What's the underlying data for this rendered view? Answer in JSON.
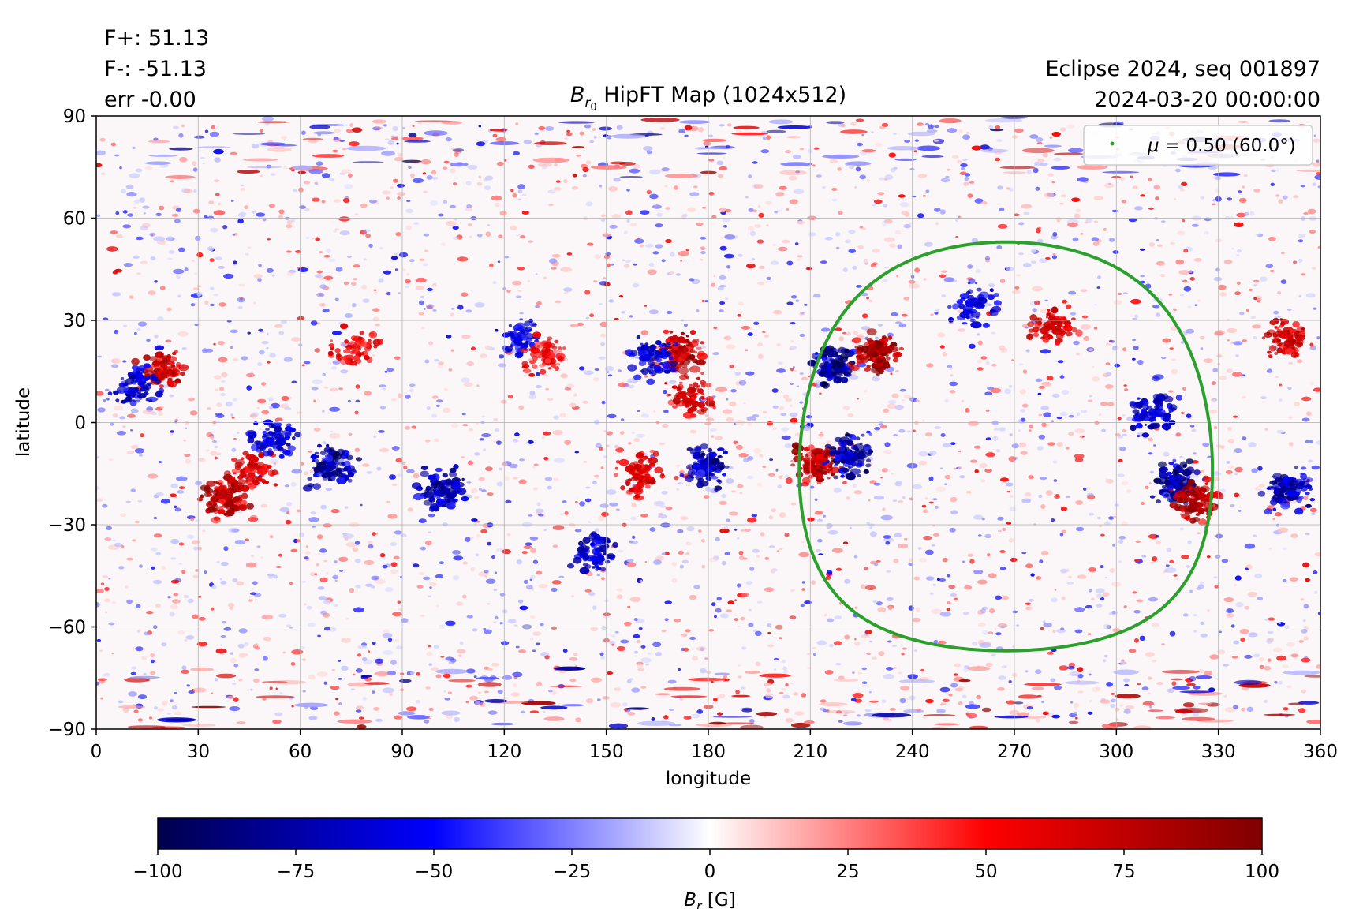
{
  "header": {
    "flux_pos": "F+: 51.13",
    "flux_neg": "F-: -51.13",
    "flux_err": "err -0.00",
    "title_symbol": "B",
    "title_subscript": "r",
    "title_subsubscript": "0",
    "title_rest": " HipFT Map (1024x512)",
    "event": "Eclipse 2024, seq 001897",
    "datetime": "2024-03-20 00:00:00"
  },
  "legend": {
    "mu_symbol": "μ",
    "text": " = 0.50 (60.0°)",
    "color": "#2ca02c"
  },
  "chart_data": {
    "type": "heatmap",
    "xlabel": "longitude",
    "ylabel": "latitude",
    "xlim": [
      0,
      360
    ],
    "ylim": [
      -90,
      90
    ],
    "xticks": [
      0,
      30,
      60,
      90,
      120,
      150,
      180,
      210,
      240,
      270,
      300,
      330,
      360
    ],
    "yticks": [
      90,
      60,
      30,
      0,
      -30,
      -60,
      -90
    ],
    "ytick_labels": [
      "90",
      "60",
      "30",
      "0",
      "−30",
      "−60",
      "−90"
    ],
    "grid": true,
    "colormap": "seismic",
    "colorbar": {
      "range": [
        -100,
        100
      ],
      "ticks": [
        -100,
        -75,
        -50,
        -25,
        0,
        25,
        50,
        75,
        100
      ],
      "tick_labels": [
        "−100",
        "−75",
        "−50",
        "−25",
        "0",
        "25",
        "50",
        "75",
        "100"
      ],
      "label_symbol": "B",
      "label_subscript": "r",
      "label_unit": " [G]",
      "stops": [
        "#00004c",
        "#0000ff",
        "#ffffff",
        "#ff0000",
        "#7f0000"
      ]
    },
    "active_regions": [
      {
        "lon": 217,
        "lat": 17,
        "polarity": "negative",
        "strength": 1.0
      },
      {
        "lon": 229,
        "lat": 20,
        "polarity": "positive",
        "strength": 1.0
      },
      {
        "lon": 212,
        "lat": -12,
        "polarity": "positive",
        "strength": 0.9
      },
      {
        "lon": 221,
        "lat": -10,
        "polarity": "negative",
        "strength": 0.9
      },
      {
        "lon": 172,
        "lat": 21,
        "polarity": "positive",
        "strength": 0.9
      },
      {
        "lon": 164,
        "lat": 19,
        "polarity": "negative",
        "strength": 0.6
      },
      {
        "lon": 175,
        "lat": 8,
        "polarity": "positive",
        "strength": 0.6
      },
      {
        "lon": 38,
        "lat": -22,
        "polarity": "positive",
        "strength": 0.9
      },
      {
        "lon": 46,
        "lat": -14,
        "polarity": "positive",
        "strength": 0.6
      },
      {
        "lon": 70,
        "lat": -13,
        "polarity": "negative",
        "strength": 0.9
      },
      {
        "lon": 52,
        "lat": -5,
        "polarity": "negative",
        "strength": 0.6
      },
      {
        "lon": 20,
        "lat": 15,
        "polarity": "positive",
        "strength": 0.8
      },
      {
        "lon": 12,
        "lat": 10,
        "polarity": "negative",
        "strength": 0.6
      },
      {
        "lon": 102,
        "lat": -20,
        "polarity": "negative",
        "strength": 0.8
      },
      {
        "lon": 180,
        "lat": -13,
        "polarity": "negative",
        "strength": 0.8
      },
      {
        "lon": 160,
        "lat": -15,
        "polarity": "positive",
        "strength": 0.6
      },
      {
        "lon": 147,
        "lat": -38,
        "polarity": "negative",
        "strength": 0.6
      },
      {
        "lon": 318,
        "lat": -18,
        "polarity": "negative",
        "strength": 0.9
      },
      {
        "lon": 323,
        "lat": -23,
        "polarity": "positive",
        "strength": 0.9
      },
      {
        "lon": 311,
        "lat": 3,
        "polarity": "negative",
        "strength": 0.7
      },
      {
        "lon": 350,
        "lat": -20,
        "polarity": "negative",
        "strength": 0.8
      },
      {
        "lon": 350,
        "lat": 25,
        "polarity": "positive",
        "strength": 0.7
      },
      {
        "lon": 281,
        "lat": 29,
        "polarity": "positive",
        "strength": 0.6
      },
      {
        "lon": 258,
        "lat": 35,
        "polarity": "negative",
        "strength": 0.5
      },
      {
        "lon": 76,
        "lat": 22,
        "polarity": "positive",
        "strength": 0.5
      },
      {
        "lon": 125,
        "lat": 25,
        "polarity": "negative",
        "strength": 0.5
      },
      {
        "lon": 132,
        "lat": 20,
        "polarity": "positive",
        "strength": 0.5
      }
    ],
    "mu_contour": {
      "mu": 0.5,
      "angle_deg": 60.0,
      "center_lon": 267.5,
      "center_lat": -7.0,
      "color": "#2ca02c"
    }
  }
}
